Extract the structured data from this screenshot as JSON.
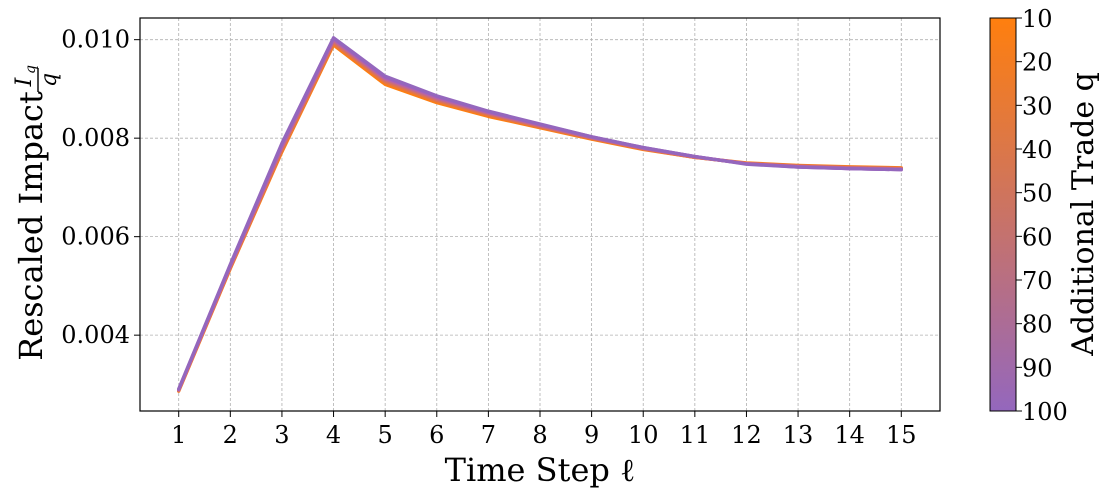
{
  "chart_data": {
    "type": "line",
    "xlabel": "Time Step ℓ",
    "ylabel_prefix": "Rescaled Impact",
    "ylabel_frac_numerator": "I",
    "ylabel_frac_numerator_sub": "q",
    "ylabel_frac_denominator": "q",
    "xlim": [
      0.25,
      15.75
    ],
    "ylim": [
      0.00246,
      0.01044
    ],
    "x": [
      1,
      2,
      3,
      4,
      5,
      6,
      7,
      8,
      9,
      10,
      11,
      12,
      13,
      14,
      15
    ],
    "x_ticks": [
      "1",
      "2",
      "3",
      "4",
      "5",
      "6",
      "7",
      "8",
      "9",
      "10",
      "11",
      "12",
      "13",
      "14",
      "15"
    ],
    "y_ticks": [
      {
        "value": 0.004,
        "label": "0.004"
      },
      {
        "value": 0.006,
        "label": "0.006"
      },
      {
        "value": 0.008,
        "label": "0.008"
      },
      {
        "value": 0.01,
        "label": "0.010"
      }
    ],
    "grid": true,
    "colorbar": {
      "label": "Additional Trade q",
      "range": [
        10,
        100
      ],
      "orientation": "vertical",
      "top_value": 10,
      "bottom_value": 100,
      "color_at_10": "#ff7f0e",
      "color_at_100": "#9467bd",
      "tick_labels": [
        "10",
        "20",
        "30",
        "40",
        "50",
        "60",
        "70",
        "80",
        "90",
        "100"
      ]
    },
    "series": [
      {
        "q": 10,
        "color": "#ff7f0e",
        "values": [
          0.00286,
          0.00535,
          0.00772,
          0.00989,
          0.00909,
          0.00872,
          0.00844,
          0.00821,
          0.00798,
          0.00777,
          0.00761,
          0.0075,
          0.00745,
          0.00742,
          0.0074
        ]
      },
      {
        "q": 20,
        "color": "#f37b26",
        "values": [
          0.00287,
          0.00536,
          0.00774,
          0.00991,
          0.00912,
          0.00874,
          0.00846,
          0.00822,
          0.00799,
          0.00778,
          0.00761,
          0.00749,
          0.00744,
          0.00741,
          0.00739
        ]
      },
      {
        "q": 30,
        "color": "#e8773e",
        "values": [
          0.00287,
          0.00537,
          0.00776,
          0.00993,
          0.00914,
          0.00876,
          0.00847,
          0.00823,
          0.008,
          0.00778,
          0.00761,
          0.00749,
          0.00744,
          0.00741,
          0.00739
        ]
      },
      {
        "q": 40,
        "color": "#dc7356",
        "values": [
          0.00288,
          0.00538,
          0.00778,
          0.00995,
          0.00916,
          0.00878,
          0.00849,
          0.00824,
          0.008,
          0.00779,
          0.00762,
          0.00749,
          0.00743,
          0.0074,
          0.00738
        ]
      },
      {
        "q": 50,
        "color": "#d16f6e",
        "values": [
          0.00288,
          0.00539,
          0.0078,
          0.00997,
          0.00918,
          0.00879,
          0.0085,
          0.00825,
          0.00801,
          0.00779,
          0.00762,
          0.00748,
          0.00743,
          0.0074,
          0.00738
        ]
      },
      {
        "q": 60,
        "color": "#c56b86",
        "values": [
          0.00289,
          0.0054,
          0.00782,
          0.00999,
          0.0092,
          0.00881,
          0.00851,
          0.00826,
          0.00801,
          0.0078,
          0.00762,
          0.00748,
          0.00742,
          0.00739,
          0.00737
        ]
      },
      {
        "q": 70,
        "color": "#ba679e",
        "values": [
          0.00289,
          0.00541,
          0.00784,
          0.01,
          0.00921,
          0.00882,
          0.00852,
          0.00827,
          0.00802,
          0.0078,
          0.00762,
          0.00748,
          0.00742,
          0.00739,
          0.00737
        ]
      },
      {
        "q": 80,
        "color": "#ae63b6",
        "values": [
          0.0029,
          0.00542,
          0.00786,
          0.01002,
          0.00923,
          0.00884,
          0.00853,
          0.00828,
          0.00802,
          0.0078,
          0.00763,
          0.00748,
          0.00742,
          0.00738,
          0.00736
        ]
      },
      {
        "q": 90,
        "color": "#a25fbe",
        "values": [
          0.0029,
          0.00543,
          0.00788,
          0.01003,
          0.00924,
          0.00885,
          0.00854,
          0.00828,
          0.00803,
          0.00781,
          0.00763,
          0.00748,
          0.00741,
          0.00738,
          0.00736
        ]
      },
      {
        "q": 100,
        "color": "#9467bd",
        "values": [
          0.00291,
          0.00544,
          0.0079,
          0.01004,
          0.00926,
          0.00886,
          0.00855,
          0.00829,
          0.00803,
          0.00781,
          0.00763,
          0.00747,
          0.00741,
          0.00738,
          0.00736
        ]
      }
    ]
  }
}
